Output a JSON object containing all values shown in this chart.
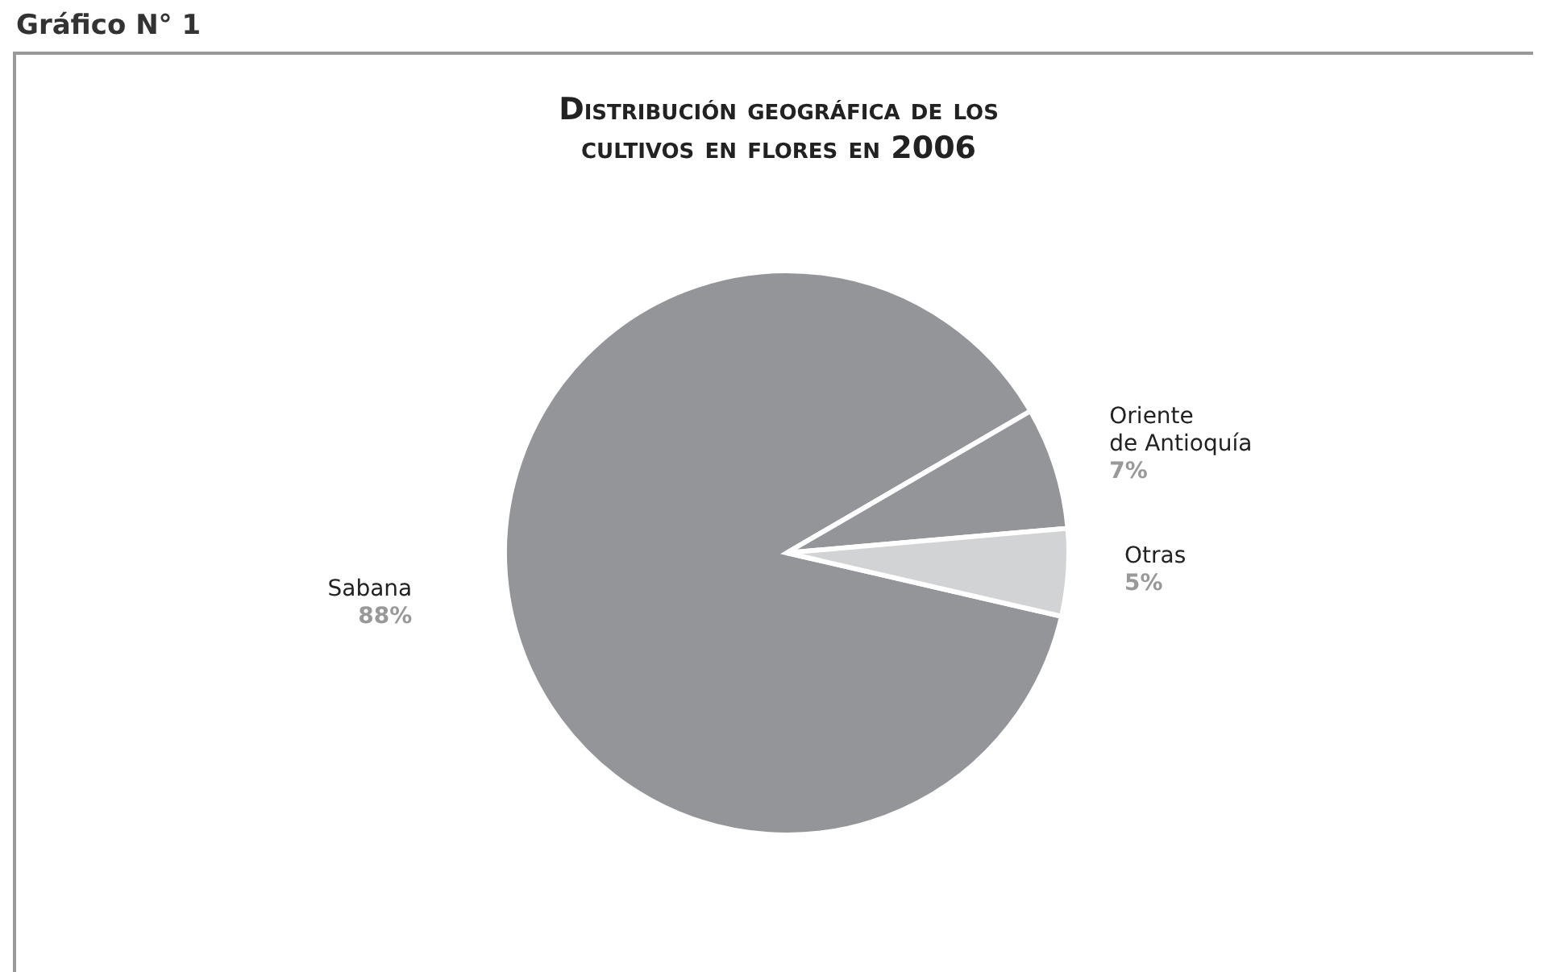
{
  "chart_data": {
    "type": "pie",
    "title": "Distribución geográfica de los cultivos en flores en 2006",
    "annotations": [
      "Gráfico N° 1"
    ],
    "categories": [
      "Sabana",
      "Oriente de Antioquía",
      "Otras"
    ],
    "values": [
      88,
      7,
      5
    ],
    "colors": [
      "#939598",
      "#939598",
      "#d1d3d4"
    ],
    "value_labels": [
      "88%",
      "7%",
      "5%"
    ],
    "legend": false
  }
}
